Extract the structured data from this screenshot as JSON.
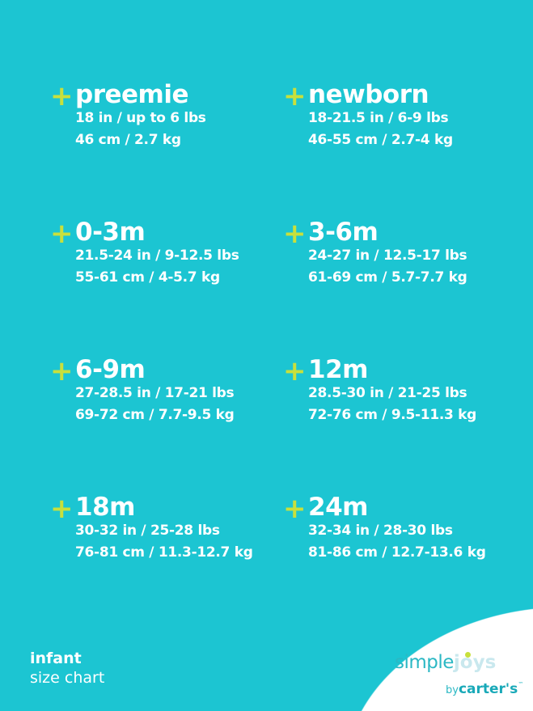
{
  "colors": {
    "background": "#1cc5d2",
    "accent_plus": "#c8e03c",
    "text": "#ffffff"
  },
  "sizes": [
    {
      "name": "preemie",
      "line1": "18 in / up to 6 lbs",
      "line2": "46 cm / 2.7 kg"
    },
    {
      "name": "newborn",
      "line1": "18-21.5 in / 6-9 lbs",
      "line2": "46-55 cm / 2.7-4 kg"
    },
    {
      "name": "0-3m",
      "line1": "21.5-24 in / 9-12.5 lbs",
      "line2": "55-61 cm / 4-5.7 kg"
    },
    {
      "name": "3-6m",
      "line1": "24-27 in / 12.5-17 lbs",
      "line2": "61-69 cm / 5.7-7.7 kg"
    },
    {
      "name": "6-9m",
      "line1": "27-28.5 in / 17-21 lbs",
      "line2": "69-72 cm / 7.7-9.5 kg"
    },
    {
      "name": "12m",
      "line1": "28.5-30 in / 21-25 lbs",
      "line2": "72-76 cm / 9.5-11.3 kg"
    },
    {
      "name": "18m",
      "line1": "30-32 in / 25-28 lbs",
      "line2": "76-81 cm / 11.3-12.7 kg"
    },
    {
      "name": "24m",
      "line1": "32-34 in / 28-30 lbs",
      "line2": "81-86 cm / 12.7-13.6 kg"
    }
  ],
  "plus_symbol": "+",
  "caption": {
    "line1": "infant",
    "line2": "size chart"
  },
  "logo": {
    "simple": "simple",
    "joys": "joys",
    "by": "by",
    "brand": "carter's",
    "tm": "™"
  }
}
